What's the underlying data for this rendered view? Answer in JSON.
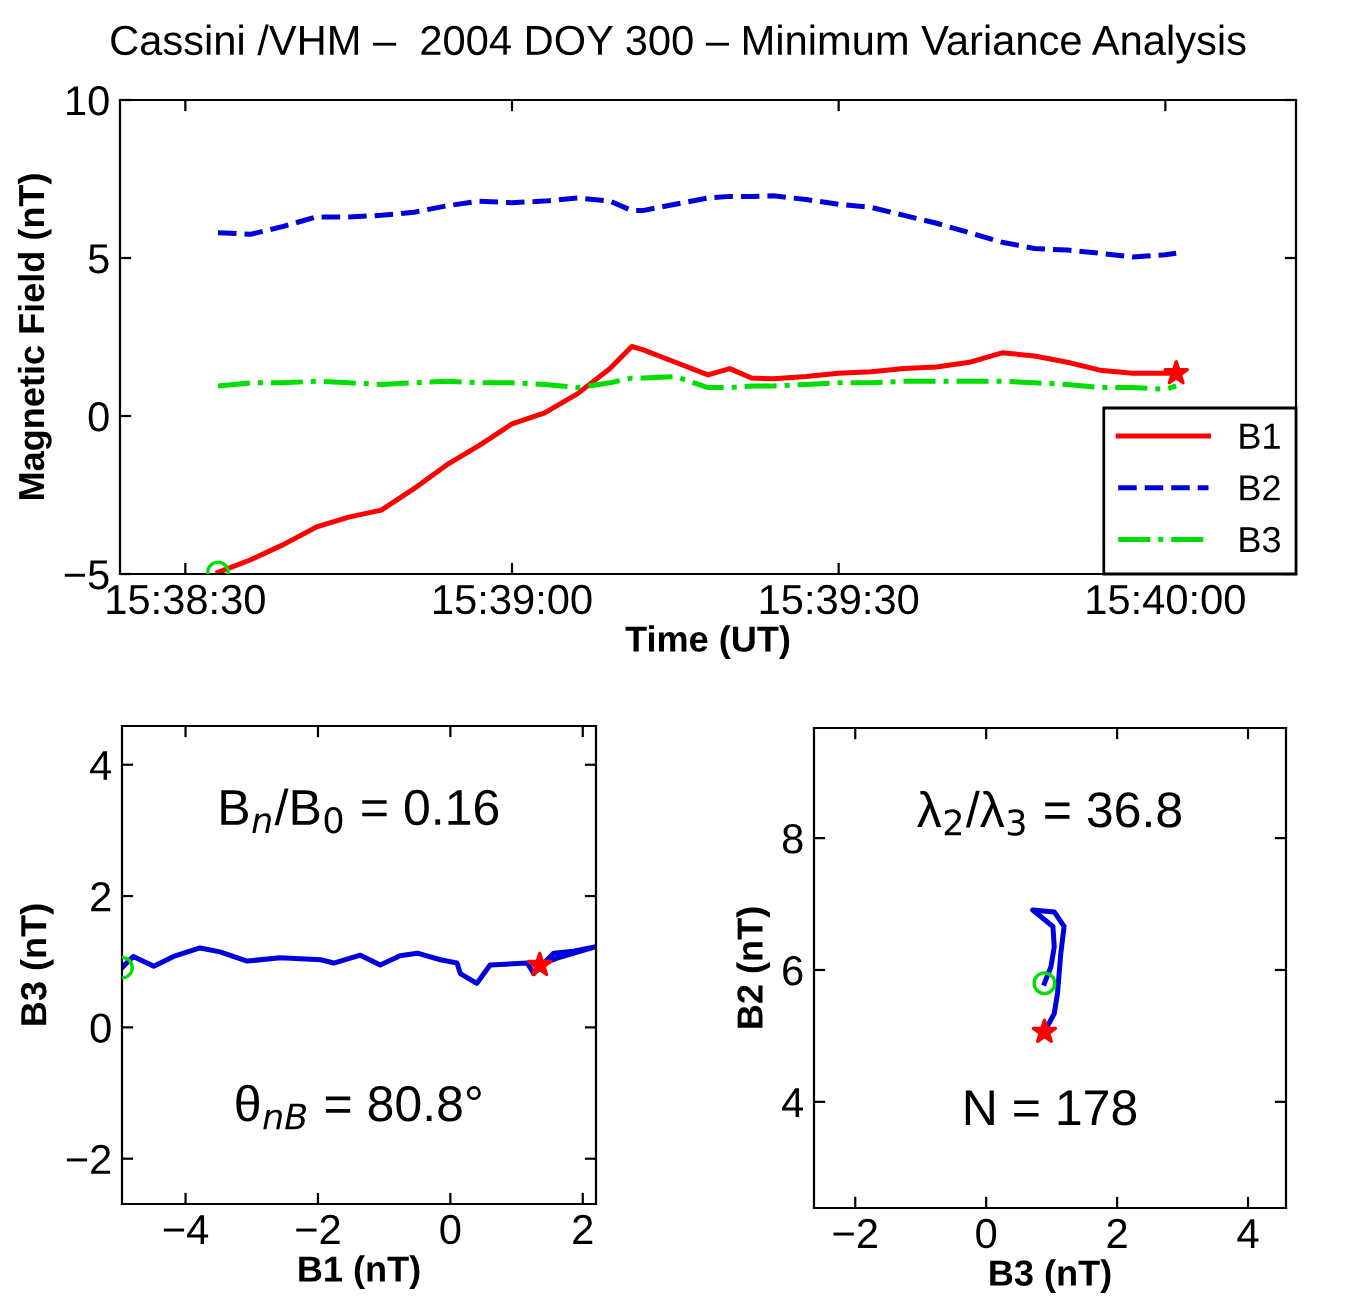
{
  "chart_data": [
    {
      "type": "line",
      "title": "Cassini /VHM –  2004 DOY 300 – Minimum Variance Analysis",
      "xlabel": "Time (UT)",
      "ylabel": "Magnetic Field (nT)",
      "x": [
        15.6425,
        15.643333,
        15.644167,
        15.645,
        15.645833,
        15.646667,
        15.6475,
        15.648333,
        15.649167,
        15.65,
        15.650833,
        15.651667,
        15.6525,
        15.653056,
        15.653333,
        15.654167,
        15.655,
        15.655556,
        15.656111,
        15.656667,
        15.6575,
        15.658333,
        15.659167,
        15.66,
        15.660833,
        15.661667,
        15.6625,
        15.663333,
        15.664167,
        15.665,
        15.665833,
        15.666667,
        15.666944
      ],
      "series": [
        {
          "name": "B1",
          "color": "#ff0000",
          "line_style": "solid",
          "values": [
            -4.95,
            -4.55,
            -4.07,
            -3.52,
            -3.2,
            -2.98,
            -2.3,
            -1.55,
            -0.93,
            -0.25,
            0.1,
            0.7,
            1.5,
            2.2,
            2.1,
            1.7,
            1.3,
            1.5,
            1.2,
            1.18,
            1.25,
            1.35,
            1.4,
            1.5,
            1.55,
            1.7,
            2.0,
            1.9,
            1.7,
            1.45,
            1.35,
            1.35,
            1.35
          ]
        },
        {
          "name": "B2",
          "color": "#0000dd",
          "line_style": "dashed",
          "values": [
            5.8,
            5.75,
            6.0,
            6.3,
            6.3,
            6.35,
            6.45,
            6.65,
            6.8,
            6.75,
            6.8,
            6.9,
            6.8,
            6.5,
            6.5,
            6.7,
            6.9,
            6.95,
            6.95,
            6.97,
            6.85,
            6.7,
            6.6,
            6.35,
            6.1,
            5.8,
            5.5,
            5.3,
            5.25,
            5.15,
            5.03,
            5.1,
            5.15
          ]
        },
        {
          "name": "B3",
          "color": "#00dd00",
          "line_style": "dashdot",
          "values": [
            0.95,
            1.05,
            1.05,
            1.1,
            1.05,
            1.0,
            1.05,
            1.1,
            1.05,
            1.05,
            1.0,
            0.9,
            1.05,
            1.2,
            1.2,
            1.25,
            0.9,
            0.9,
            0.95,
            0.95,
            1.0,
            1.05,
            1.05,
            1.1,
            1.1,
            1.1,
            1.1,
            1.05,
            1.0,
            0.9,
            0.9,
            0.85,
            0.95
          ]
        },
        {
          "type": "scatter",
          "marker": "circle",
          "color": "#00dd00",
          "x": [
            15.6425
          ],
          "values": [
            -4.95
          ]
        },
        {
          "type": "scatter",
          "marker": "star",
          "color": "#ff0000",
          "x": [
            15.666944
          ],
          "values": [
            1.35
          ]
        }
      ],
      "xlim": [
        15.64,
        15.67
      ],
      "xticks": [
        {
          "value": 15.641667,
          "label": "15:38:30"
        },
        {
          "value": 15.65,
          "label": "15:39:00"
        },
        {
          "value": 15.658333,
          "label": "15:39:30"
        },
        {
          "value": 15.666667,
          "label": "15:40:00"
        }
      ],
      "ylim": [
        -5,
        10
      ],
      "yticks": [
        -5,
        0,
        5,
        10
      ],
      "legend": "bottom right"
    },
    {
      "type": "line",
      "xlabel": "B1 (nT)",
      "ylabel": "B3 (nT)",
      "annotations": [
        "B$_{n}$/B$_{0}$ = 0.16",
        "θ$_{nB}$ = 80.8°"
      ],
      "series": [
        {
          "color": "#0000dd",
          "x": [
            -4.96,
            -4.79,
            -4.48,
            -4.18,
            -3.78,
            -3.48,
            -3.07,
            -2.57,
            -1.96,
            -1.76,
            -1.36,
            -1.06,
            -0.76,
            -0.5,
            -0.15,
            0.1,
            0.15,
            0.4,
            0.6,
            1.16,
            1.26,
            1.56,
            1.86,
            2.2,
            1.6,
            1.35
          ],
          "values": [
            0.91,
            1.08,
            0.93,
            1.08,
            1.21,
            1.15,
            1.01,
            1.06,
            1.03,
            0.98,
            1.1,
            0.95,
            1.09,
            1.13,
            1.03,
            0.98,
            0.82,
            0.67,
            0.95,
            0.98,
            0.82,
            1.13,
            1.16,
            1.23,
            1.05,
            0.95
          ]
        },
        {
          "type": "scatter",
          "marker": "circle",
          "color": "#00dd00",
          "x": [
            -4.96
          ],
          "values": [
            0.91
          ]
        },
        {
          "type": "scatter",
          "marker": "star",
          "color": "#ff0000",
          "x": [
            1.35
          ],
          "values": [
            0.95
          ]
        }
      ],
      "xlim": [
        -4.96,
        2.2
      ],
      "xticks": [
        -4,
        -2,
        0,
        2
      ],
      "ylim": [
        -2.69,
        4.59
      ],
      "yticks": [
        -2,
        0,
        2,
        4
      ]
    },
    {
      "type": "line",
      "xlabel": "B3 (nT)",
      "ylabel": "B2 (nT)",
      "annotations": [
        "λ$_{2}$/λ$_{3}$ = 36.8",
        "N = 178"
      ],
      "series": [
        {
          "color": "#0000dd",
          "x": [
            0.89,
            0.99,
            1.04,
            1.02,
            0.71,
            1.04,
            1.19,
            1.14,
            1.09,
            1.04,
            0.89
          ],
          "values": [
            5.8,
            6.05,
            6.35,
            6.66,
            6.91,
            6.88,
            6.66,
            6.25,
            5.65,
            5.34,
            5.06
          ]
        },
        {
          "type": "scatter",
          "marker": "circle",
          "color": "#00dd00",
          "x": [
            0.89
          ],
          "values": [
            5.8
          ]
        },
        {
          "type": "scatter",
          "marker": "star",
          "color": "#ff0000",
          "x": [
            0.89
          ],
          "values": [
            5.06
          ]
        }
      ],
      "xlim": [
        -2.63,
        4.58
      ],
      "xticks": [
        -2,
        0,
        2,
        4
      ],
      "ylim": [
        2.39,
        9.67
      ],
      "yticks": [
        4,
        6,
        8
      ]
    }
  ]
}
